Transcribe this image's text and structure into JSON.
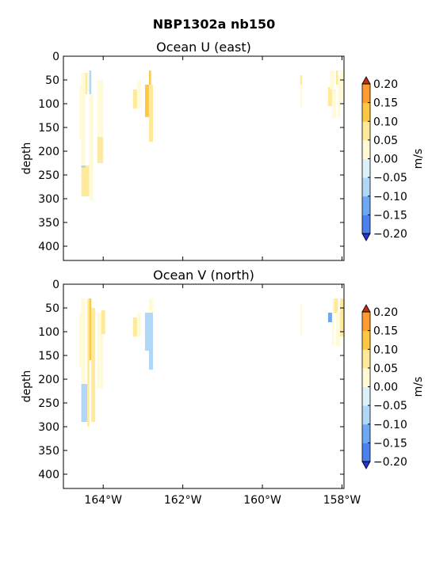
{
  "suptitle": "NBP1302a nb150",
  "chart_data": [
    {
      "type": "heatmap",
      "title": "Ocean U (east)",
      "ylabel": "depth",
      "xlim": [
        -165.0,
        -157.95
      ],
      "ylim": [
        430,
        0
      ],
      "xticks": [
        {
          "value": -164,
          "label": "164°W"
        },
        {
          "value": -162,
          "label": "162°W"
        },
        {
          "value": -160,
          "label": "160°W"
        },
        {
          "value": -158,
          "label": "158°W"
        }
      ],
      "show_xticklabels": false,
      "yticks": [
        0,
        50,
        100,
        150,
        200,
        250,
        300,
        350,
        400
      ],
      "colorbar": {
        "label": "m/s",
        "levels": [
          -0.2,
          -0.15,
          -0.1,
          -0.05,
          0.0,
          0.05,
          0.1,
          0.15,
          0.2
        ],
        "tick_labels": [
          "−0.20",
          "−0.15",
          "−0.10",
          "−0.05",
          "0.00",
          "0.05",
          "0.10",
          "0.15",
          "0.20"
        ],
        "colors": [
          "#3347f0",
          "#4a80f0",
          "#6ea8f2",
          "#b0d6f8",
          "#dcf0fa",
          "#fffbd8",
          "#ffe99a",
          "#ffc840",
          "#ff9a30",
          "#e86020"
        ],
        "under": "#2233dd",
        "over": "#c03010"
      },
      "cells": [
        {
          "x0": -164.6,
          "x1": -164.55,
          "d0": 60,
          "d1": 175,
          "level": 1
        },
        {
          "x0": -164.55,
          "x1": -164.45,
          "d0": 35,
          "d1": 230,
          "level": 1
        },
        {
          "x0": -164.55,
          "x1": -164.35,
          "d0": 230,
          "d1": 295,
          "level": 2
        },
        {
          "x0": -164.55,
          "x1": -164.45,
          "d0": 230,
          "d1": 235,
          "level": -1
        },
        {
          "x0": -164.45,
          "x1": -164.4,
          "d0": 35,
          "d1": 80,
          "level": 2
        },
        {
          "x0": -164.4,
          "x1": -164.35,
          "d0": 35,
          "d1": 75,
          "level": 1
        },
        {
          "x0": -164.35,
          "x1": -164.3,
          "d0": 30,
          "d1": 80,
          "level": -1
        },
        {
          "x0": -164.35,
          "x1": -164.25,
          "d0": 80,
          "d1": 305,
          "level": 1
        },
        {
          "x0": -164.15,
          "x1": -164.0,
          "d0": 50,
          "d1": 225,
          "level": 1
        },
        {
          "x0": -164.15,
          "x1": -164.0,
          "d0": 170,
          "d1": 225,
          "level": 2
        },
        {
          "x0": -163.25,
          "x1": -163.15,
          "d0": 70,
          "d1": 110,
          "level": 2
        },
        {
          "x0": -163.15,
          "x1": -163.05,
          "d0": 50,
          "d1": 110,
          "level": 1
        },
        {
          "x0": -162.95,
          "x1": -162.85,
          "d0": 60,
          "d1": 128,
          "level": 3
        },
        {
          "x0": -162.85,
          "x1": -162.8,
          "d0": 30,
          "d1": 60,
          "level": 3
        },
        {
          "x0": -162.85,
          "x1": -162.75,
          "d0": 60,
          "d1": 180,
          "level": 2
        },
        {
          "x0": -159.05,
          "x1": -159.0,
          "d0": 40,
          "d1": 60,
          "level": 2
        },
        {
          "x0": -159.05,
          "x1": -159.0,
          "d0": 60,
          "d1": 110,
          "level": 1
        },
        {
          "x0": -158.35,
          "x1": -158.25,
          "d0": 65,
          "d1": 105,
          "level": 2
        },
        {
          "x0": -158.3,
          "x1": -158.2,
          "d0": 30,
          "d1": 70,
          "level": 1
        },
        {
          "x0": -158.25,
          "x1": -158.15,
          "d0": 70,
          "d1": 130,
          "level": 1
        },
        {
          "x0": -158.15,
          "x1": -158.1,
          "d0": 30,
          "d1": 60,
          "level": 2
        },
        {
          "x0": -158.1,
          "x1": -158.05,
          "d0": 40,
          "d1": 130,
          "level": 1
        },
        {
          "x0": -158.05,
          "x1": -157.95,
          "d0": 30,
          "d1": 100,
          "level": 1
        }
      ]
    },
    {
      "type": "heatmap",
      "title": "Ocean V (north)",
      "ylabel": "depth",
      "xlim": [
        -165.0,
        -157.95
      ],
      "ylim": [
        430,
        0
      ],
      "xticks": [
        {
          "value": -164,
          "label": "164°W"
        },
        {
          "value": -162,
          "label": "162°W"
        },
        {
          "value": -160,
          "label": "160°W"
        },
        {
          "value": -158,
          "label": "158°W"
        }
      ],
      "show_xticklabels": true,
      "yticks": [
        0,
        50,
        100,
        150,
        200,
        250,
        300,
        350,
        400
      ],
      "colorbar": {
        "label": "m/s",
        "levels": [
          -0.2,
          -0.15,
          -0.1,
          -0.05,
          0.0,
          0.05,
          0.1,
          0.15,
          0.2
        ],
        "tick_labels": [
          "−0.20",
          "−0.15",
          "−0.10",
          "−0.05",
          "0.00",
          "0.05",
          "0.10",
          "0.15",
          "0.20"
        ],
        "colors": [
          "#3347f0",
          "#4a80f0",
          "#6ea8f2",
          "#b0d6f8",
          "#dcf0fa",
          "#fffbd8",
          "#ffe99a",
          "#ffc840",
          "#ff9a30",
          "#e86020"
        ],
        "under": "#2233dd",
        "over": "#c03010"
      },
      "cells": [
        {
          "x0": -164.6,
          "x1": -164.55,
          "d0": 60,
          "d1": 175,
          "level": 1
        },
        {
          "x0": -164.55,
          "x1": -164.45,
          "d0": 30,
          "d1": 210,
          "level": 1
        },
        {
          "x0": -164.55,
          "x1": -164.4,
          "d0": 210,
          "d1": 290,
          "level": -1
        },
        {
          "x0": -164.4,
          "x1": -164.35,
          "d0": 30,
          "d1": 300,
          "level": 2
        },
        {
          "x0": -164.35,
          "x1": -164.3,
          "d0": 30,
          "d1": 160,
          "level": 3
        },
        {
          "x0": -164.3,
          "x1": -164.2,
          "d0": 50,
          "d1": 290,
          "level": 2
        },
        {
          "x0": -164.15,
          "x1": -164.0,
          "d0": 60,
          "d1": 220,
          "level": 1
        },
        {
          "x0": -164.05,
          "x1": -163.95,
          "d0": 55,
          "d1": 105,
          "level": 2
        },
        {
          "x0": -163.25,
          "x1": -163.15,
          "d0": 70,
          "d1": 110,
          "level": 2
        },
        {
          "x0": -163.15,
          "x1": -163.05,
          "d0": 60,
          "d1": 110,
          "level": 1
        },
        {
          "x0": -162.95,
          "x1": -162.85,
          "d0": 60,
          "d1": 140,
          "level": -1
        },
        {
          "x0": -162.85,
          "x1": -162.75,
          "d0": 30,
          "d1": 60,
          "level": 1
        },
        {
          "x0": -162.85,
          "x1": -162.75,
          "d0": 60,
          "d1": 180,
          "level": -1
        },
        {
          "x0": -159.05,
          "x1": -159.0,
          "d0": 40,
          "d1": 110,
          "level": 1
        },
        {
          "x0": -158.35,
          "x1": -158.25,
          "d0": 60,
          "d1": 80,
          "level": -2
        },
        {
          "x0": -158.25,
          "x1": -158.2,
          "d0": 30,
          "d1": 130,
          "level": 1
        },
        {
          "x0": -158.2,
          "x1": -158.1,
          "d0": 30,
          "d1": 60,
          "level": 2
        },
        {
          "x0": -158.15,
          "x1": -158.05,
          "d0": 60,
          "d1": 130,
          "level": 1
        },
        {
          "x0": -158.05,
          "x1": -157.95,
          "d0": 30,
          "d1": 110,
          "level": 2
        }
      ]
    }
  ]
}
